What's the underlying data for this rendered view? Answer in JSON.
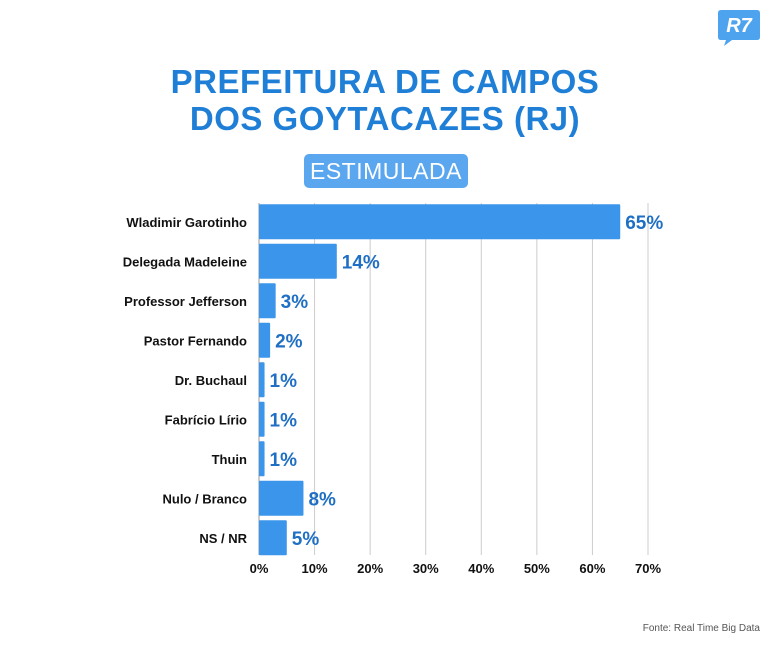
{
  "brand": {
    "logo_text": "R7",
    "color": "#4ea3ee"
  },
  "title_lines": [
    "PREFEITURA DE CAMPOS",
    "DOS GOYTACAZES (RJ)"
  ],
  "badge": "ESTIMULADA",
  "source": "Fonte: Real Time Big Data",
  "colors": {
    "bar": "#3b95ea",
    "value_label": "#1f6fc4",
    "title": "#1f7fd6",
    "grid": "#cccccc"
  },
  "chart_data": {
    "type": "bar",
    "orientation": "horizontal",
    "categories": [
      "Wladimir Garotinho",
      "Delegada Madeleine",
      "Professor Jefferson",
      "Pastor Fernando",
      "Dr. Buchaul",
      "Fabrício Lírio",
      "Thuin",
      "Nulo / Branco",
      "NS / NR"
    ],
    "values": [
      65,
      14,
      3,
      2,
      1,
      1,
      1,
      8,
      5
    ],
    "value_labels": [
      "65%",
      "14%",
      "3%",
      "2%",
      "1%",
      "1%",
      "1%",
      "8%",
      "5%"
    ],
    "xlim": [
      0,
      70
    ],
    "xticks": [
      "0%",
      "10%",
      "20%",
      "30%",
      "40%",
      "50%",
      "60%",
      "70%"
    ],
    "grid": true
  }
}
